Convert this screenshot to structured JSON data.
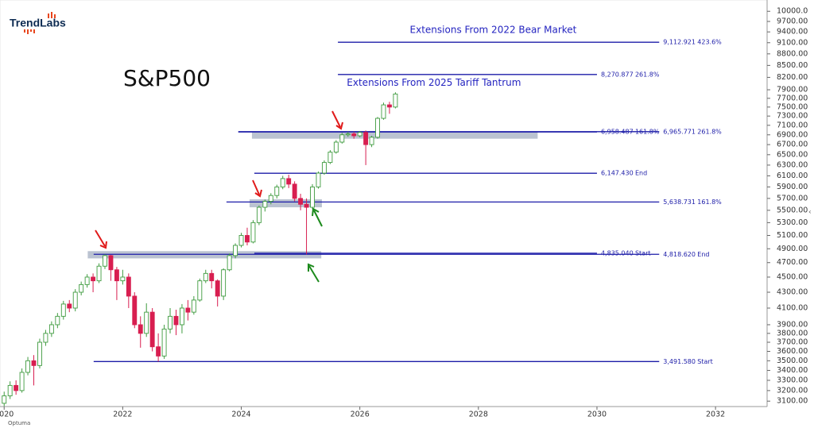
{
  "chart_data": {
    "type": "candlestick",
    "title": "S&P500",
    "brand": "TrendLabs",
    "footer": "Optuma",
    "annotations": [
      {
        "text": "Extensions From 2022 Bear Market",
        "x": 2028.25,
        "value": 9450
      },
      {
        "text": "Extensions From 2025 Tariff Tantrum",
        "x": 2027.25,
        "value": 8060
      }
    ],
    "ylim": [
      3050,
      10150
    ],
    "log_scale": true,
    "xlim": [
      2019.93,
      2032.87
    ],
    "xticks": [
      2020,
      2022,
      2024,
      2026,
      2028,
      2030,
      2032
    ],
    "yticks": [
      {
        "value": 3100,
        "label": "3100.00"
      },
      {
        "value": 3200,
        "label": "3200.00"
      },
      {
        "value": 3300,
        "label": "3300.00"
      },
      {
        "value": 3400,
        "label": "3400.00"
      },
      {
        "value": 3500,
        "label": "3500.00"
      },
      {
        "value": 3600,
        "label": "3600.00"
      },
      {
        "value": 3700,
        "label": "3700.00"
      },
      {
        "value": 3800,
        "label": "3800.00"
      },
      {
        "value": 3900,
        "label": "3900.00"
      },
      {
        "value": 4100,
        "label": "4100.00"
      },
      {
        "value": 4300,
        "label": "4300.00"
      },
      {
        "value": 4500,
        "label": "4500.00"
      },
      {
        "value": 4700,
        "label": "4700.00"
      },
      {
        "value": 4900,
        "label": "4900.00"
      },
      {
        "value": 5100,
        "label": "5100.00"
      },
      {
        "value": 5300,
        "label": "5300.00"
      },
      {
        "value": 5500,
        "label": "5500.00"
      },
      {
        "value": 5700,
        "label": "5700.00"
      },
      {
        "value": 5900,
        "label": "5900.00"
      },
      {
        "value": 6100,
        "label": "6100.00"
      },
      {
        "value": 6300,
        "label": "6300.00"
      },
      {
        "value": 6500,
        "label": "6500.00"
      },
      {
        "value": 6700,
        "label": "6700.00"
      },
      {
        "value": 6900,
        "label": "6900.00"
      },
      {
        "value": 7100,
        "label": "7100.00"
      },
      {
        "value": 7300,
        "label": "7300.00"
      },
      {
        "value": 7500,
        "label": "7500.00"
      },
      {
        "value": 7700,
        "label": "7700.00"
      },
      {
        "value": 7900,
        "label": "7900.00"
      },
      {
        "value": 8200,
        "label": "8200.00"
      },
      {
        "value": 8500,
        "label": "8500.00"
      },
      {
        "value": 8800,
        "label": "8800.00"
      },
      {
        "value": 9100,
        "label": "9100.00"
      },
      {
        "value": 9400,
        "label": "9400.00"
      },
      {
        "value": 9700,
        "label": "9700.00"
      },
      {
        "value": 10000,
        "label": "10000.0"
      }
    ],
    "up_color": "#3f9b3f",
    "down_color": "#d81e50",
    "level_color": "#1c1ca8",
    "zone_color": "#b4bccc",
    "zones": [
      {
        "x": [
          2024.18,
          2029.0
        ],
        "range": [
          6820,
          6965
        ]
      },
      {
        "x": [
          2024.14,
          2025.36
        ],
        "range": [
          5550,
          5685
        ]
      },
      {
        "x": [
          2021.41,
          2025.35
        ],
        "range": [
          4760,
          4865
        ]
      }
    ],
    "levels": [
      {
        "value": 9112.921,
        "label": "9,112.921",
        "tag": "423.6%",
        "start": 2025.63,
        "end": 2031.05
      },
      {
        "value": 8270.877,
        "label": "8,270.877",
        "tag": "261.8%",
        "start": 2025.63,
        "end": 2030.0
      },
      {
        "value": 6965.771,
        "label": "6,965.771",
        "tag": "261.8%",
        "start": 2023.95,
        "end": 2031.05
      },
      {
        "value": 6958.487,
        "label": "6,958.487",
        "tag": "161.8%",
        "start": 2023.95,
        "end": 2030.0
      },
      {
        "value": 6147.43,
        "label": "6,147.430",
        "tag": "End",
        "start": 2024.22,
        "end": 2030.0
      },
      {
        "value": 5638.731,
        "label": "5,638.731",
        "tag": "161.8%",
        "start": 2023.75,
        "end": 2031.05
      },
      {
        "value": 4818.62,
        "label": "4,818.620",
        "tag": "End",
        "start": 2021.51,
        "end": 2031.05
      },
      {
        "value": 4835.04,
        "label": "4,835.040",
        "tag": "Start",
        "start": 2024.22,
        "end": 2030.0
      },
      {
        "value": 3491.58,
        "label": "3,491.580",
        "tag": "Start",
        "start": 2021.51,
        "end": 2031.05
      }
    ],
    "candles": [
      {
        "x": 2020.0,
        "open": 3080,
        "high": 3190,
        "low": 3050,
        "close": 3150
      },
      {
        "x": 2020.1,
        "open": 3150,
        "high": 3290,
        "low": 3120,
        "close": 3250
      },
      {
        "x": 2020.2,
        "open": 3250,
        "high": 3300,
        "low": 3160,
        "close": 3200
      },
      {
        "x": 2020.3,
        "open": 3200,
        "high": 3420,
        "low": 3180,
        "close": 3380
      },
      {
        "x": 2020.4,
        "open": 3380,
        "high": 3540,
        "low": 3350,
        "close": 3500
      },
      {
        "x": 2020.5,
        "open": 3500,
        "high": 3560,
        "low": 3250,
        "close": 3450
      },
      {
        "x": 2020.6,
        "open": 3450,
        "high": 3740,
        "low": 3420,
        "close": 3700
      },
      {
        "x": 2020.7,
        "open": 3700,
        "high": 3840,
        "low": 3660,
        "close": 3800
      },
      {
        "x": 2020.8,
        "open": 3800,
        "high": 3940,
        "low": 3760,
        "close": 3900
      },
      {
        "x": 2020.9,
        "open": 3900,
        "high": 4040,
        "low": 3860,
        "close": 4000
      },
      {
        "x": 2021.0,
        "open": 4000,
        "high": 4190,
        "low": 3960,
        "close": 4150
      },
      {
        "x": 2021.1,
        "open": 4150,
        "high": 4200,
        "low": 4050,
        "close": 4100
      },
      {
        "x": 2021.2,
        "open": 4100,
        "high": 4340,
        "low": 4060,
        "close": 4300
      },
      {
        "x": 2021.3,
        "open": 4300,
        "high": 4440,
        "low": 4260,
        "close": 4400
      },
      {
        "x": 2021.4,
        "open": 4400,
        "high": 4540,
        "low": 4360,
        "close": 4500
      },
      {
        "x": 2021.5,
        "open": 4500,
        "high": 4550,
        "low": 4300,
        "close": 4450
      },
      {
        "x": 2021.6,
        "open": 4450,
        "high": 4690,
        "low": 4420,
        "close": 4650
      },
      {
        "x": 2021.7,
        "open": 4650,
        "high": 4818,
        "low": 4610,
        "close": 4800
      },
      {
        "x": 2021.8,
        "open": 4800,
        "high": 4810,
        "low": 4450,
        "close": 4600
      },
      {
        "x": 2021.9,
        "open": 4600,
        "high": 4640,
        "low": 4200,
        "close": 4450
      },
      {
        "x": 2022.0,
        "open": 4450,
        "high": 4600,
        "low": 4400,
        "close": 4500
      },
      {
        "x": 2022.1,
        "open": 4500,
        "high": 4550,
        "low": 4100,
        "close": 4250
      },
      {
        "x": 2022.2,
        "open": 4250,
        "high": 4300,
        "low": 3860,
        "close": 3900
      },
      {
        "x": 2022.3,
        "open": 3900,
        "high": 4000,
        "low": 3640,
        "close": 3800
      },
      {
        "x": 2022.4,
        "open": 3800,
        "high": 4160,
        "low": 3760,
        "close": 4050
      },
      {
        "x": 2022.5,
        "open": 4050,
        "high": 4100,
        "low": 3600,
        "close": 3650
      },
      {
        "x": 2022.6,
        "open": 3650,
        "high": 3800,
        "low": 3491,
        "close": 3550
      },
      {
        "x": 2022.7,
        "open": 3550,
        "high": 3900,
        "low": 3520,
        "close": 3850
      },
      {
        "x": 2022.8,
        "open": 3850,
        "high": 4100,
        "low": 3800,
        "close": 4000
      },
      {
        "x": 2022.9,
        "open": 4000,
        "high": 4080,
        "low": 3780,
        "close": 3900
      },
      {
        "x": 2023.0,
        "open": 3900,
        "high": 4150,
        "low": 3800,
        "close": 4100
      },
      {
        "x": 2023.1,
        "open": 4100,
        "high": 4200,
        "low": 3950,
        "close": 4050
      },
      {
        "x": 2023.2,
        "open": 4050,
        "high": 4250,
        "low": 4020,
        "close": 4200
      },
      {
        "x": 2023.3,
        "open": 4200,
        "high": 4480,
        "low": 4180,
        "close": 4450
      },
      {
        "x": 2023.4,
        "open": 4450,
        "high": 4600,
        "low": 4420,
        "close": 4550
      },
      {
        "x": 2023.5,
        "open": 4550,
        "high": 4600,
        "low": 4350,
        "close": 4450
      },
      {
        "x": 2023.6,
        "open": 4450,
        "high": 4470,
        "low": 4120,
        "close": 4250
      },
      {
        "x": 2023.7,
        "open": 4250,
        "high": 4620,
        "low": 4200,
        "close": 4600
      },
      {
        "x": 2023.8,
        "open": 4600,
        "high": 4830,
        "low": 4580,
        "close": 4800
      },
      {
        "x": 2023.9,
        "open": 4800,
        "high": 4980,
        "low": 4760,
        "close": 4950
      },
      {
        "x": 2024.0,
        "open": 4950,
        "high": 5140,
        "low": 4920,
        "close": 5100
      },
      {
        "x": 2024.1,
        "open": 5100,
        "high": 5220,
        "low": 4950,
        "close": 5000
      },
      {
        "x": 2024.2,
        "open": 5000,
        "high": 5340,
        "low": 4980,
        "close": 5300
      },
      {
        "x": 2024.3,
        "open": 5300,
        "high": 5580,
        "low": 5260,
        "close": 5550
      },
      {
        "x": 2024.4,
        "open": 5550,
        "high": 5680,
        "low": 5480,
        "close": 5650
      },
      {
        "x": 2024.5,
        "open": 5650,
        "high": 5790,
        "low": 5600,
        "close": 5750
      },
      {
        "x": 2024.6,
        "open": 5750,
        "high": 5940,
        "low": 5700,
        "close": 5900
      },
      {
        "x": 2024.7,
        "open": 5900,
        "high": 6100,
        "low": 5860,
        "close": 6050
      },
      {
        "x": 2024.8,
        "open": 6050,
        "high": 6120,
        "low": 5880,
        "close": 5950
      },
      {
        "x": 2024.9,
        "open": 5950,
        "high": 6000,
        "low": 5650,
        "close": 5700
      },
      {
        "x": 2025.0,
        "open": 5700,
        "high": 5780,
        "low": 5500,
        "close": 5600
      },
      {
        "x": 2025.1,
        "open": 5600,
        "high": 5700,
        "low": 4818,
        "close": 5550
      },
      {
        "x": 2025.2,
        "open": 5550,
        "high": 5950,
        "low": 5520,
        "close": 5900
      },
      {
        "x": 2025.3,
        "open": 5900,
        "high": 6180,
        "low": 5870,
        "close": 6150
      },
      {
        "x": 2025.4,
        "open": 6150,
        "high": 6390,
        "low": 6120,
        "close": 6350
      },
      {
        "x": 2025.5,
        "open": 6350,
        "high": 6590,
        "low": 6320,
        "close": 6550
      },
      {
        "x": 2025.6,
        "open": 6550,
        "high": 6790,
        "low": 6520,
        "close": 6750
      },
      {
        "x": 2025.7,
        "open": 6750,
        "high": 6940,
        "low": 6720,
        "close": 6900
      },
      {
        "x": 2025.8,
        "open": 6900,
        "high": 6960,
        "low": 6860,
        "close": 6920
      },
      {
        "x": 2025.9,
        "open": 6920,
        "high": 6960,
        "low": 6820,
        "close": 6880
      },
      {
        "x": 2026.0,
        "open": 6880,
        "high": 6980,
        "low": 6850,
        "close": 6950
      },
      {
        "x": 2026.1,
        "open": 6950,
        "high": 6990,
        "low": 6300,
        "close": 6700
      },
      {
        "x": 2026.2,
        "open": 6700,
        "high": 6880,
        "low": 6650,
        "close": 6850
      },
      {
        "x": 2026.3,
        "open": 6850,
        "high": 7280,
        "low": 6820,
        "close": 7250
      },
      {
        "x": 2026.4,
        "open": 7250,
        "high": 7600,
        "low": 7220,
        "close": 7550
      },
      {
        "x": 2026.5,
        "open": 7550,
        "high": 7620,
        "low": 7350,
        "close": 7500
      },
      {
        "x": 2026.6,
        "open": 7500,
        "high": 7840,
        "low": 7470,
        "close": 7800
      }
    ]
  }
}
